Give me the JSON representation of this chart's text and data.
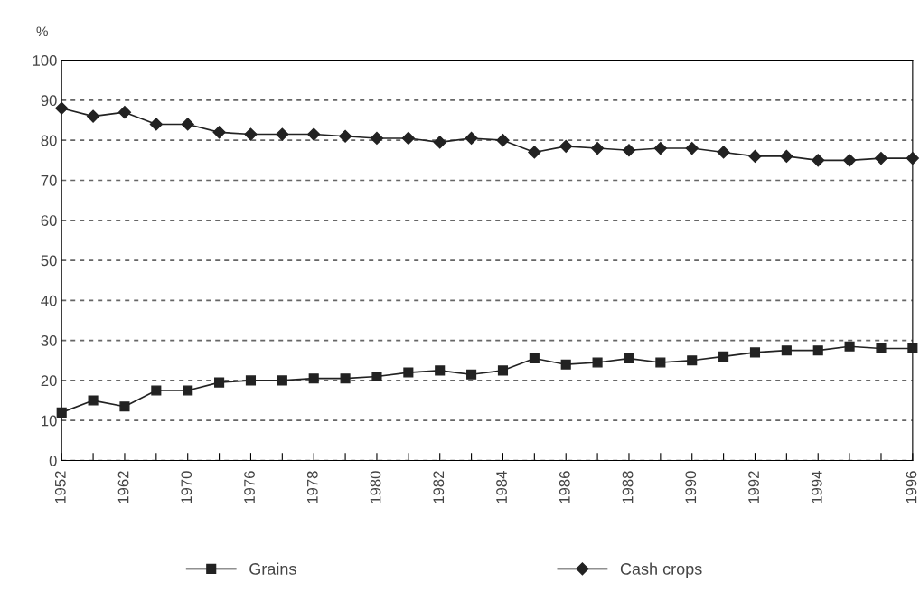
{
  "chart_data": {
    "type": "line",
    "ylabel": "%",
    "categories": [
      "1952",
      null,
      "1962",
      null,
      "1970",
      null,
      "1976",
      null,
      "1978",
      null,
      "1980",
      null,
      "1982",
      null,
      "1984",
      null,
      "1986",
      null,
      "1988",
      null,
      "1990",
      null,
      "1992",
      null,
      "1994",
      null,
      null,
      "1996"
    ],
    "series": [
      {
        "name": "Grains",
        "color": "#222222",
        "marker": "square",
        "values": [
          12,
          15,
          13.5,
          17.5,
          17.5,
          19.5,
          20,
          20,
          20.5,
          20.5,
          21,
          22,
          22.5,
          21.5,
          22.5,
          25.5,
          24,
          24.5,
          25.5,
          24.5,
          25,
          26,
          27,
          27.5,
          27.5,
          28.5,
          28,
          28
        ]
      },
      {
        "name": "Cash crops",
        "color": "#222222",
        "marker": "diamond",
        "values": [
          88,
          86,
          87,
          84,
          84,
          82,
          81.5,
          81.5,
          81.5,
          81,
          80.5,
          80.5,
          79.5,
          80.5,
          80,
          77,
          78.5,
          78,
          77.5,
          78,
          78,
          77,
          76,
          76,
          75,
          75,
          75.5,
          75.5
        ]
      }
    ],
    "ylim": [
      0,
      100
    ],
    "yticks": [
      0,
      10,
      20,
      30,
      40,
      50,
      60,
      70,
      80,
      90,
      100
    ],
    "grid": "y",
    "line_style": "solid",
    "legend": "bottom"
  }
}
